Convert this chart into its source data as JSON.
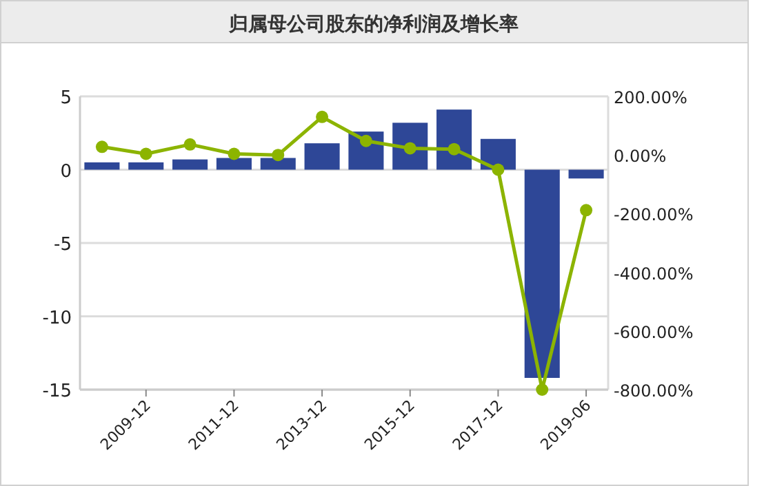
{
  "chart_data": {
    "type": "bar",
    "title": "归属母公司股东的净利润及增长率",
    "categories": [
      null,
      "2009-12",
      null,
      "2011-12",
      null,
      "2013-12",
      null,
      "2015-12",
      null,
      "2017-12",
      null,
      "2019-06"
    ],
    "series": [
      {
        "color": "#2e4797",
        "values": [
          0.5,
          0.5,
          0.7,
          0.8,
          0.8,
          1.8,
          2.6,
          3.2,
          4.1,
          2.1,
          -14.2,
          -0.6
        ]
      },
      {
        "type": "line",
        "axis": "y2",
        "color": "#8cb400",
        "marker": "circle",
        "values": [
          28,
          4,
          36,
          4,
          0,
          130,
          48,
          23,
          20,
          -50,
          -800,
          -188
        ]
      }
    ],
    "ylim": [
      -15,
      5
    ],
    "yticks": [
      -15,
      -10,
      -5,
      0,
      5
    ],
    "y2lim": [
      -800,
      200
    ],
    "y2ticks": [
      {
        "value": -800,
        "label": "-800.00%"
      },
      {
        "value": -600,
        "label": "-600.00%"
      },
      {
        "value": -400,
        "label": "-400.00%"
      },
      {
        "value": -200,
        "label": "-200.00%"
      },
      {
        "value": 0,
        "label": "0.00%"
      },
      {
        "value": 200,
        "label": "200.00%"
      }
    ],
    "grid": "y"
  }
}
